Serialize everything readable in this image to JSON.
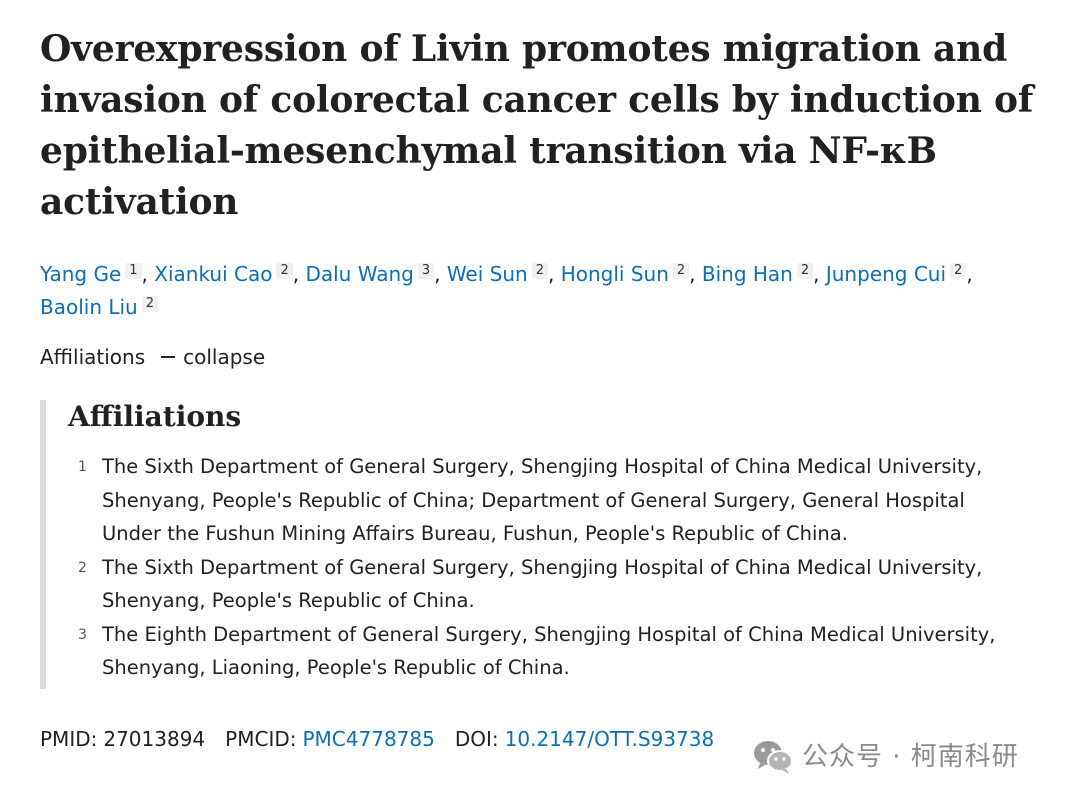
{
  "article": {
    "title": "Overexpression of Livin promotes migration and invasion of colorectal cancer cells by induction of epithelial-mesenchymal transition via NF-κB activation",
    "authors": [
      {
        "name": "Yang Ge",
        "aff": "1"
      },
      {
        "name": "Xiankui Cao",
        "aff": "2"
      },
      {
        "name": "Dalu Wang",
        "aff": "3"
      },
      {
        "name": "Wei Sun",
        "aff": "2"
      },
      {
        "name": "Hongli Sun",
        "aff": "2"
      },
      {
        "name": "Bing Han",
        "aff": "2"
      },
      {
        "name": "Junpeng Cui",
        "aff": "2"
      },
      {
        "name": "Baolin Liu",
        "aff": "2"
      }
    ],
    "separator": ",",
    "affiliations_toggle": {
      "label": "Affiliations",
      "action": "collapse"
    },
    "affiliations": {
      "heading": "Affiliations",
      "items": [
        {
          "num": "1",
          "text": "The Sixth Department of General Surgery, Shengjing Hospital of China Medical University, Shenyang, People's Republic of China; Department of General Surgery, General Hospital Under the Fushun Mining Affairs Bureau, Fushun, People's Republic of China."
        },
        {
          "num": "2",
          "text": "The Sixth Department of General Surgery, Shengjing Hospital of China Medical University, Shenyang, People's Republic of China."
        },
        {
          "num": "3",
          "text": "The Eighth Department of General Surgery, Shengjing Hospital of China Medical University, Shenyang, Liaoning, People's Republic of China."
        }
      ]
    },
    "identifiers": {
      "pmid_label": "PMID:",
      "pmid": "27013894",
      "pmcid_label": "PMCID:",
      "pmcid": "PMC4778785",
      "doi_label": "DOI:",
      "doi": "10.2147/OTT.S93738"
    }
  },
  "watermark": {
    "text": "公众号 · 柯南科研",
    "icon": "wechat-icon"
  }
}
